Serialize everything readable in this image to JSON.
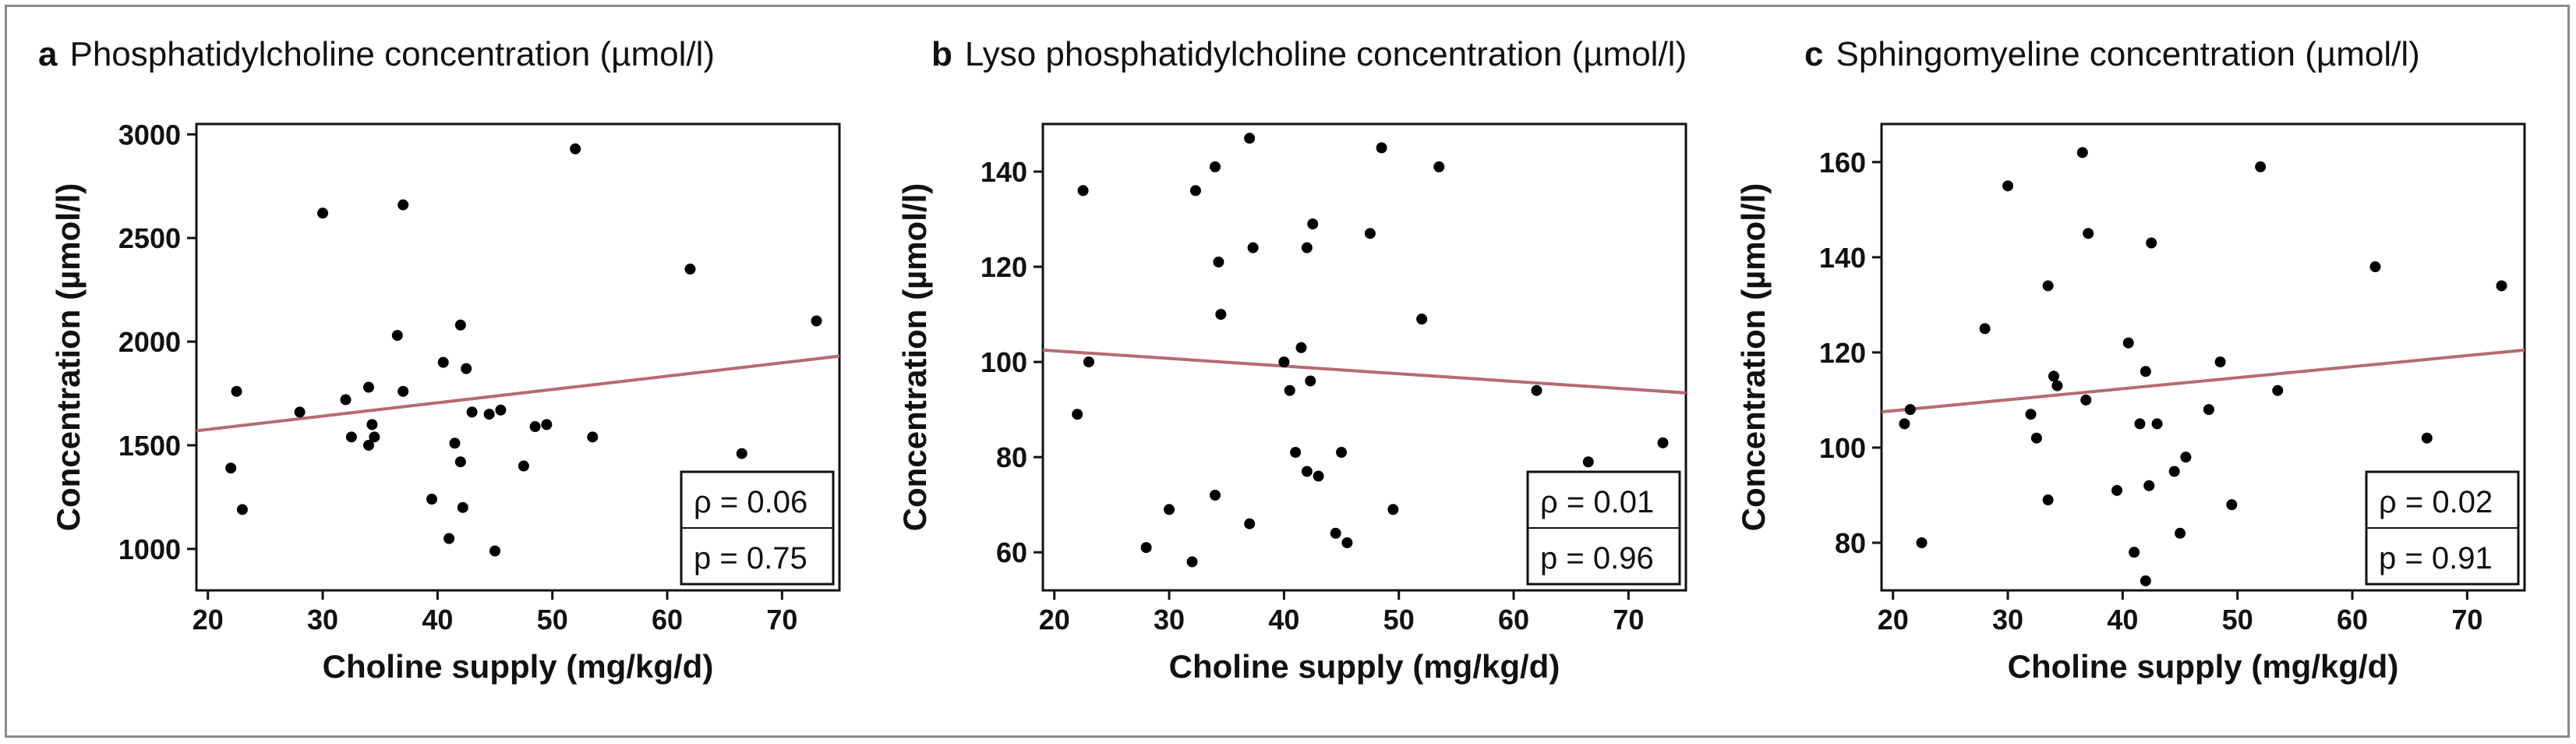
{
  "chart_data": [
    {
      "panel": "a",
      "type": "scatter",
      "title": "Phosphatidylcholine concentration (µmol/l)",
      "xlabel": "Choline supply (mg/kg/d)",
      "ylabel": "Concentration (µmol/l)",
      "xlim": [
        19,
        75
      ],
      "ylim": [
        800,
        3050
      ],
      "xticks": [
        20,
        30,
        40,
        50,
        60,
        70
      ],
      "yticks": [
        1000,
        1500,
        2000,
        2500,
        3000
      ],
      "points": [
        {
          "x": 22,
          "y": 1390
        },
        {
          "x": 22.5,
          "y": 1760
        },
        {
          "x": 23,
          "y": 1190
        },
        {
          "x": 28,
          "y": 1660
        },
        {
          "x": 30,
          "y": 2620
        },
        {
          "x": 32,
          "y": 1720
        },
        {
          "x": 32.5,
          "y": 1540
        },
        {
          "x": 34,
          "y": 1780
        },
        {
          "x": 34,
          "y": 1500
        },
        {
          "x": 34.3,
          "y": 1600
        },
        {
          "x": 34.5,
          "y": 1540
        },
        {
          "x": 36.5,
          "y": 2030
        },
        {
          "x": 37,
          "y": 1760
        },
        {
          "x": 37,
          "y": 2660
        },
        {
          "x": 39.5,
          "y": 1240
        },
        {
          "x": 40.5,
          "y": 1900
        },
        {
          "x": 41,
          "y": 1050
        },
        {
          "x": 41.5,
          "y": 1510
        },
        {
          "x": 42,
          "y": 2080
        },
        {
          "x": 42,
          "y": 1420
        },
        {
          "x": 42.2,
          "y": 1200
        },
        {
          "x": 42.5,
          "y": 1870
        },
        {
          "x": 43,
          "y": 1660
        },
        {
          "x": 44.5,
          "y": 1650
        },
        {
          "x": 45,
          "y": 990
        },
        {
          "x": 45.5,
          "y": 1670
        },
        {
          "x": 47.5,
          "y": 1400
        },
        {
          "x": 48.5,
          "y": 1590
        },
        {
          "x": 49.5,
          "y": 1600
        },
        {
          "x": 52,
          "y": 2930
        },
        {
          "x": 53.5,
          "y": 1540
        },
        {
          "x": 62,
          "y": 2350
        },
        {
          "x": 66.5,
          "y": 1460
        },
        {
          "x": 73,
          "y": 2100
        }
      ],
      "trend": {
        "x": [
          19,
          75
        ],
        "y": [
          1570,
          1930
        ]
      },
      "stats": {
        "rho": "ρ = 0.06",
        "p": "p = 0.75"
      },
      "colors": {
        "point": "#000000",
        "trend": "#b56b72",
        "frame": "#111111"
      }
    },
    {
      "panel": "b",
      "type": "scatter",
      "title": "Lyso phosphatidylcholine concentration (µmol/l)",
      "xlabel": "Choline supply (mg/kg/d)",
      "ylabel": "Concentration (µmol/l)",
      "xlim": [
        19,
        75
      ],
      "ylim": [
        52,
        150
      ],
      "xticks": [
        20,
        30,
        40,
        50,
        60,
        70
      ],
      "yticks": [
        60,
        80,
        100,
        120,
        140
      ],
      "points": [
        {
          "x": 22,
          "y": 89
        },
        {
          "x": 22.5,
          "y": 136
        },
        {
          "x": 23,
          "y": 100
        },
        {
          "x": 28,
          "y": 61
        },
        {
          "x": 30,
          "y": 69
        },
        {
          "x": 32,
          "y": 58
        },
        {
          "x": 32.3,
          "y": 136
        },
        {
          "x": 34,
          "y": 72
        },
        {
          "x": 34,
          "y": 141
        },
        {
          "x": 34.3,
          "y": 121
        },
        {
          "x": 34.5,
          "y": 110
        },
        {
          "x": 37,
          "y": 147
        },
        {
          "x": 37,
          "y": 66
        },
        {
          "x": 37.3,
          "y": 124
        },
        {
          "x": 40,
          "y": 100
        },
        {
          "x": 40.5,
          "y": 94
        },
        {
          "x": 41,
          "y": 81
        },
        {
          "x": 41.5,
          "y": 103
        },
        {
          "x": 42,
          "y": 124
        },
        {
          "x": 42,
          "y": 77
        },
        {
          "x": 42.3,
          "y": 96
        },
        {
          "x": 42.5,
          "y": 129
        },
        {
          "x": 43,
          "y": 76
        },
        {
          "x": 44.5,
          "y": 64
        },
        {
          "x": 45,
          "y": 81
        },
        {
          "x": 45.5,
          "y": 62
        },
        {
          "x": 47.5,
          "y": 127
        },
        {
          "x": 48.5,
          "y": 145
        },
        {
          "x": 49.5,
          "y": 69
        },
        {
          "x": 52,
          "y": 109
        },
        {
          "x": 53.5,
          "y": 141
        },
        {
          "x": 62,
          "y": 94
        },
        {
          "x": 66.5,
          "y": 79
        },
        {
          "x": 73,
          "y": 83
        }
      ],
      "trend": {
        "x": [
          19,
          75
        ],
        "y": [
          102.5,
          93.5
        ]
      },
      "stats": {
        "rho": "ρ = 0.01",
        "p": "p = 0.96"
      },
      "colors": {
        "point": "#000000",
        "trend": "#b56b72",
        "frame": "#111111"
      }
    },
    {
      "panel": "c",
      "type": "scatter",
      "title": "Sphingomyeline concentration (µmol/l)",
      "xlabel": "Choline supply (mg/kg/d)",
      "ylabel": "Concentration (µmol/l)",
      "xlim": [
        19,
        75
      ],
      "ylim": [
        70,
        168
      ],
      "xticks": [
        20,
        30,
        40,
        50,
        60,
        70
      ],
      "yticks": [
        80,
        100,
        120,
        140,
        160
      ],
      "points": [
        {
          "x": 21,
          "y": 105
        },
        {
          "x": 21.5,
          "y": 108
        },
        {
          "x": 22.5,
          "y": 80
        },
        {
          "x": 28,
          "y": 125
        },
        {
          "x": 30,
          "y": 155
        },
        {
          "x": 32,
          "y": 107
        },
        {
          "x": 32.5,
          "y": 102
        },
        {
          "x": 33.5,
          "y": 134
        },
        {
          "x": 33.5,
          "y": 89
        },
        {
          "x": 34,
          "y": 115
        },
        {
          "x": 34.3,
          "y": 113
        },
        {
          "x": 36.5,
          "y": 162
        },
        {
          "x": 36.8,
          "y": 110
        },
        {
          "x": 37,
          "y": 145
        },
        {
          "x": 39.5,
          "y": 91
        },
        {
          "x": 40.5,
          "y": 122
        },
        {
          "x": 41,
          "y": 78
        },
        {
          "x": 41.5,
          "y": 105
        },
        {
          "x": 42,
          "y": 116
        },
        {
          "x": 42,
          "y": 72
        },
        {
          "x": 42.3,
          "y": 92
        },
        {
          "x": 42.5,
          "y": 143
        },
        {
          "x": 43,
          "y": 105
        },
        {
          "x": 44.5,
          "y": 95
        },
        {
          "x": 45,
          "y": 82
        },
        {
          "x": 45.5,
          "y": 98
        },
        {
          "x": 47.5,
          "y": 108
        },
        {
          "x": 48.5,
          "y": 118
        },
        {
          "x": 49.5,
          "y": 88
        },
        {
          "x": 52,
          "y": 159
        },
        {
          "x": 53.5,
          "y": 112
        },
        {
          "x": 62,
          "y": 138
        },
        {
          "x": 66.5,
          "y": 102
        },
        {
          "x": 73,
          "y": 134
        }
      ],
      "trend": {
        "x": [
          19,
          75
        ],
        "y": [
          107.5,
          120.5
        ]
      },
      "stats": {
        "rho": "ρ = 0.02",
        "p": "p = 0.91"
      },
      "colors": {
        "point": "#000000",
        "trend": "#b56b72",
        "frame": "#111111"
      }
    }
  ],
  "panels": [
    {
      "letter": "a",
      "title": "Phosphatidylcholine concentration (µmol/l)"
    },
    {
      "letter": "b",
      "title": "Lyso phosphatidylcholine concentration (µmol/l)"
    },
    {
      "letter": "c",
      "title": "Sphingomyeline concentration (µmol/l)"
    }
  ]
}
